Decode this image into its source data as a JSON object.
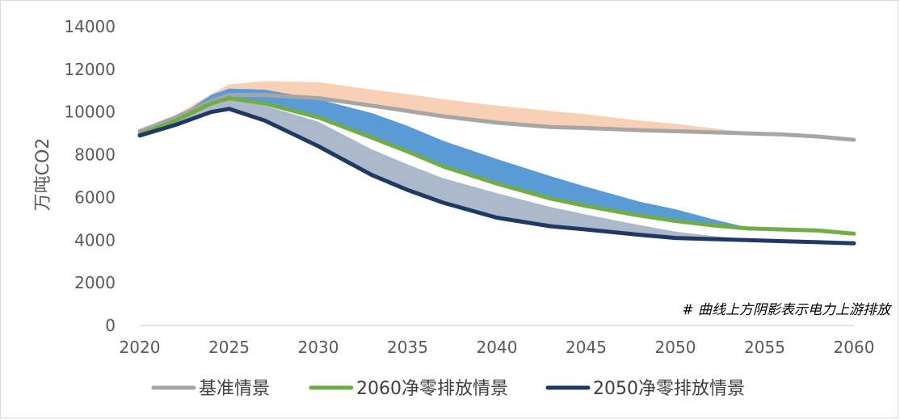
{
  "chart_data": {
    "type": "line",
    "ylabel": "万吨CO2",
    "ylim": [
      0,
      14000
    ],
    "yticks": [
      0,
      2000,
      4000,
      6000,
      8000,
      10000,
      12000,
      14000
    ],
    "xlim": [
      2020,
      2060
    ],
    "xticks": [
      2020,
      2025,
      2030,
      2035,
      2040,
      2045,
      2050,
      2055,
      2060
    ],
    "grid": false,
    "legend_position": "bottom",
    "note": "# 曲线上方阴影表示电力上游排放",
    "x": [
      2020,
      2022,
      2024,
      2025,
      2027,
      2030,
      2033,
      2035,
      2037,
      2040,
      2043,
      2045,
      2048,
      2050,
      2052,
      2054,
      2056,
      2058,
      2060
    ],
    "series": [
      {
        "name": "基准情景",
        "color": "#a6a6a6",
        "values": [
          9100,
          9750,
          10500,
          10800,
          10800,
          10650,
          10300,
          10050,
          9800,
          9500,
          9300,
          9250,
          9150,
          9100,
          9050,
          9000,
          8950,
          8850,
          8700
        ]
      },
      {
        "name": "2060净零排放情景",
        "color": "#70ad47",
        "values": [
          8950,
          9600,
          10400,
          10650,
          10400,
          9750,
          8800,
          8150,
          7450,
          6650,
          5950,
          5600,
          5150,
          4900,
          4700,
          4550,
          4500,
          4450,
          4300
        ]
      },
      {
        "name": "2050净零排放情景",
        "color": "#203864",
        "values": [
          8900,
          9400,
          10000,
          10150,
          9600,
          8400,
          7050,
          6350,
          5750,
          5050,
          4650,
          4500,
          4250,
          4100,
          4050,
          4000,
          3950,
          3900,
          3850
        ]
      }
    ],
    "upstream_bands": [
      {
        "series": "基准情景",
        "color": "#f4b183",
        "opacity": 0.6,
        "upper": [
          9150,
          9850,
          10850,
          11300,
          11450,
          11400,
          11050,
          10850,
          10600,
          10300,
          10050,
          9900,
          9600,
          9450,
          9250,
          9050,
          9000,
          8900,
          8750
        ]
      },
      {
        "series": "2060净零排放情景",
        "color": "#5b9bd5",
        "opacity": 1.0,
        "upper": [
          9000,
          9700,
          10800,
          11100,
          11050,
          10600,
          9950,
          9350,
          8650,
          7800,
          7000,
          6500,
          5800,
          5450,
          5000,
          4600,
          4500,
          4450,
          4300
        ]
      },
      {
        "series": "2050净零排放情景",
        "color": "#acb9ca",
        "opacity": 1.0,
        "upper": [
          8950,
          9550,
          10500,
          10650,
          10300,
          9550,
          8250,
          7550,
          6900,
          6200,
          5550,
          5200,
          4700,
          4400,
          4200,
          4050,
          3950,
          3900,
          3850
        ]
      }
    ]
  }
}
